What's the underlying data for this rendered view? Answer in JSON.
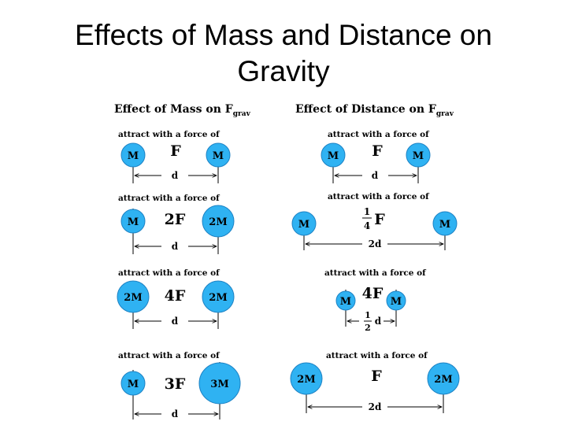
{
  "title": {
    "line1": "Effects of Mass and Distance on",
    "line2": "Gravity"
  },
  "left_panel": {
    "heading": "Effect of Mass on F",
    "heading_sub": "grav",
    "rows": [
      {
        "caption": "attract with a force of",
        "mass1": "M",
        "mass2": "M",
        "force": "F",
        "distance": "d"
      },
      {
        "caption": "attract with a force of",
        "mass1": "M",
        "mass2": "2M",
        "force": "2F",
        "distance": "d"
      },
      {
        "caption": "attract with a force of",
        "mass1": "2M",
        "mass2": "2M",
        "force": "4F",
        "distance": "d"
      },
      {
        "caption": "attract with a force of",
        "mass1": "M",
        "mass2": "3M",
        "force": "3F",
        "distance": "d"
      }
    ]
  },
  "right_panel": {
    "heading": "Effect of Distance on F",
    "heading_sub": "grav",
    "rows": [
      {
        "caption": "attract with a force of",
        "mass1": "M",
        "mass2": "M",
        "force": "F",
        "distance": "d"
      },
      {
        "caption": "attract with a force of",
        "mass1": "M",
        "mass2": "M",
        "force_num": "1",
        "force_den": "4",
        "force_unit": "F",
        "distance": "2d"
      },
      {
        "caption": "attract with a force of",
        "mass1": "M",
        "mass2": "M",
        "force": "4F",
        "dist_num": "1",
        "dist_den": "2",
        "dist_unit": "d"
      },
      {
        "caption": "attract with a force of",
        "mass1": "2M",
        "mass2": "2M",
        "force": "F",
        "distance": "2d"
      }
    ]
  },
  "colors": {
    "ball_fill": "#2fb2f2",
    "ball_stroke": "#1d82c4"
  }
}
